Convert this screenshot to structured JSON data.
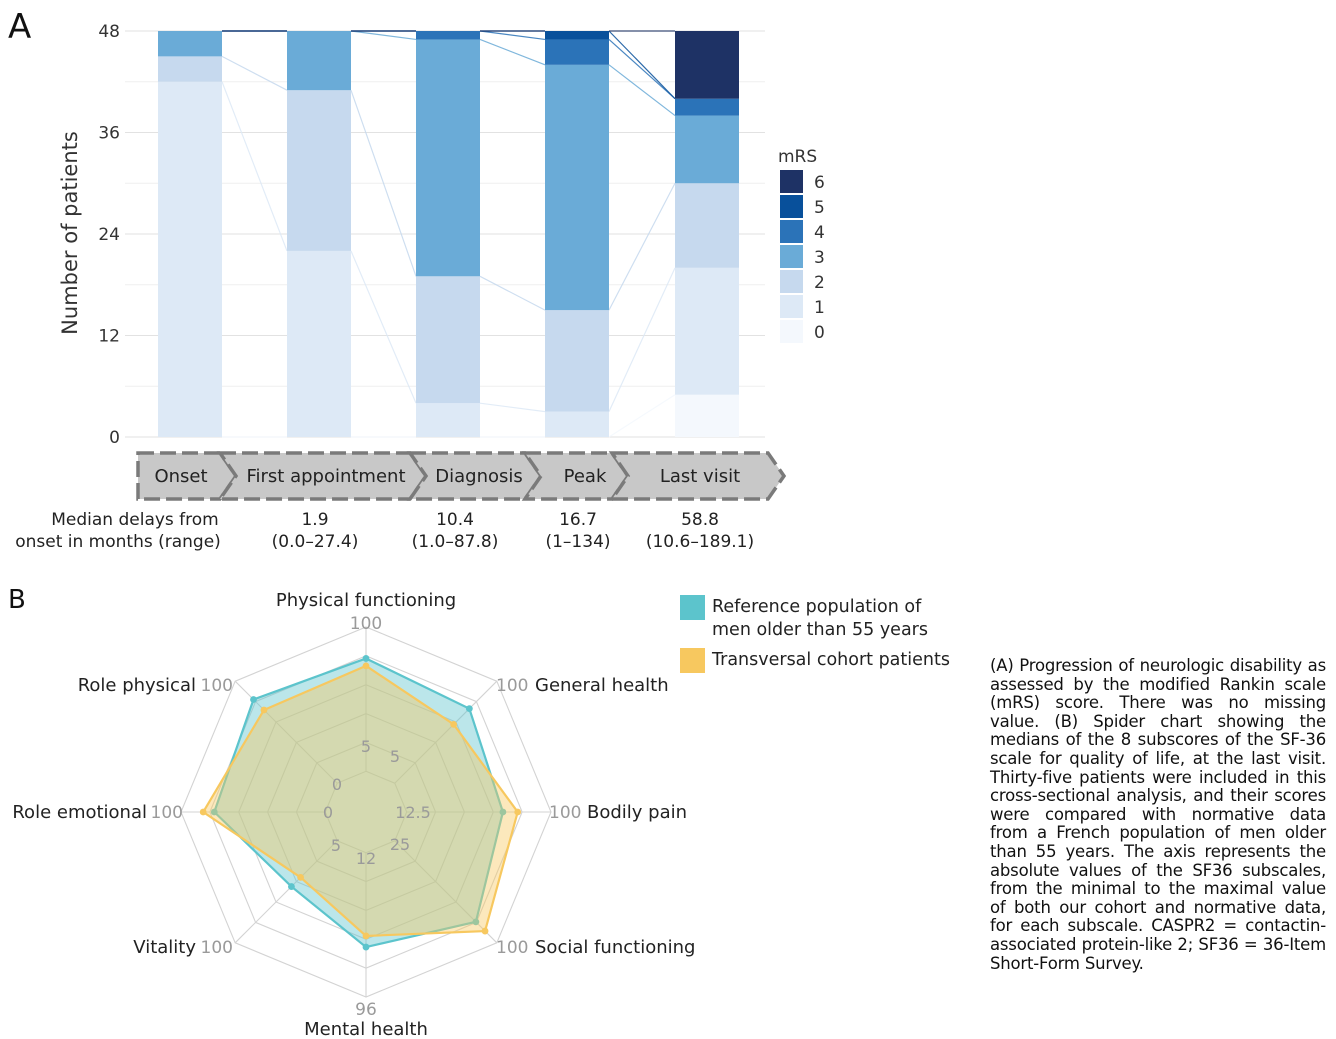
{
  "panels": {
    "a_label": "A",
    "b_label": "B"
  },
  "colors": {
    "mrs": {
      "0": "#f4f8fd",
      "1": "#dde9f6",
      "2": "#c6d9ee",
      "3": "#6aabd7",
      "4": "#2b73b8",
      "5": "#08509b",
      "6": "#1e3265"
    },
    "reference": "#5cc4cc",
    "cohort": "#f7c85f",
    "stage_fill": "#c8c8c8",
    "stage_border": "#7a7a7a"
  },
  "chart_data": [
    {
      "type": "bar",
      "stacked": true,
      "categories": [
        "Onset",
        "First appointment",
        "Diagnosis",
        "Peak",
        "Last visit"
      ],
      "ylabel": "Number of patients",
      "ylim": [
        0,
        48
      ],
      "yticks": [
        0,
        12,
        24,
        36,
        48
      ],
      "legend_title": "mRS",
      "legend_position": "right",
      "series": [
        {
          "name": "0",
          "values": [
            0,
            0,
            0,
            0,
            5
          ]
        },
        {
          "name": "1",
          "values": [
            42,
            22,
            4,
            3,
            15
          ]
        },
        {
          "name": "2",
          "values": [
            3,
            19,
            15,
            12,
            10
          ]
        },
        {
          "name": "3",
          "values": [
            3,
            7,
            28,
            29,
            8
          ]
        },
        {
          "name": "4",
          "values": [
            0,
            0,
            1,
            3,
            2
          ]
        },
        {
          "name": "5",
          "values": [
            0,
            0,
            0,
            1,
            0
          ]
        },
        {
          "name": "6",
          "values": [
            0,
            0,
            0,
            0,
            8
          ]
        }
      ],
      "median_delays_label": [
        "Median delays from",
        "onset in months (range)"
      ],
      "median_delays": [
        {
          "median": "",
          "range": ""
        },
        {
          "median": "1.9",
          "range": "(0.0–27.4)"
        },
        {
          "median": "10.4",
          "range": "(1.0–87.8)"
        },
        {
          "median": "16.7",
          "range": "(1–134)"
        },
        {
          "median": "58.8",
          "range": "(10.6–189.1)"
        }
      ]
    },
    {
      "type": "radar",
      "axes": [
        "Physical functioning",
        "General health",
        "Bodily pain",
        "Social functioning",
        "Mental health",
        "Vitality",
        "Role emotional",
        "Role physical"
      ],
      "axis_max_labels": [
        "100",
        "100",
        "100",
        "100",
        "96",
        "100",
        "100",
        "100"
      ],
      "axis_min_labels": [
        "5",
        "5",
        "12.5",
        "25",
        "12",
        "5",
        "0",
        "0"
      ],
      "scale_fractions": {
        "min_radius": 0.22,
        "levels": 5
      },
      "series": [
        {
          "name": "Reference population of men older than 55 years",
          "values": [
            0.83,
            0.79,
            0.74,
            0.84,
            0.73,
            0.57,
            0.82,
            0.86
          ]
        },
        {
          "name": "Transversal cohort patients",
          "values": [
            0.79,
            0.67,
            0.82,
            0.91,
            0.67,
            0.5,
            0.88,
            0.78
          ]
        }
      ]
    }
  ],
  "legend_b": [
    {
      "lines": [
        "Reference population of",
        "men older than 55 years"
      ]
    },
    {
      "lines": [
        "Transversal cohort patients"
      ]
    }
  ],
  "caption": "(A) Progression of neurologic disability as assessed by the modified Rankin scale (mRS) score. There was no missing value. (B) Spider chart showing the medians of the 8 subscores of the SF-36 scale for quality of life, at the last visit. Thirty-five patients were included in this cross-sectional analysis, and their scores were compared with normative data from a French population of men older than 55 years. The axis represents the absolute values of the SF36 subscales, from the minimal to the maximal value of both our cohort and normative data, for each subscale. CASPR2 = contactin-associated protein-like 2; SF36 = 36-Item Short-Form Survey."
}
